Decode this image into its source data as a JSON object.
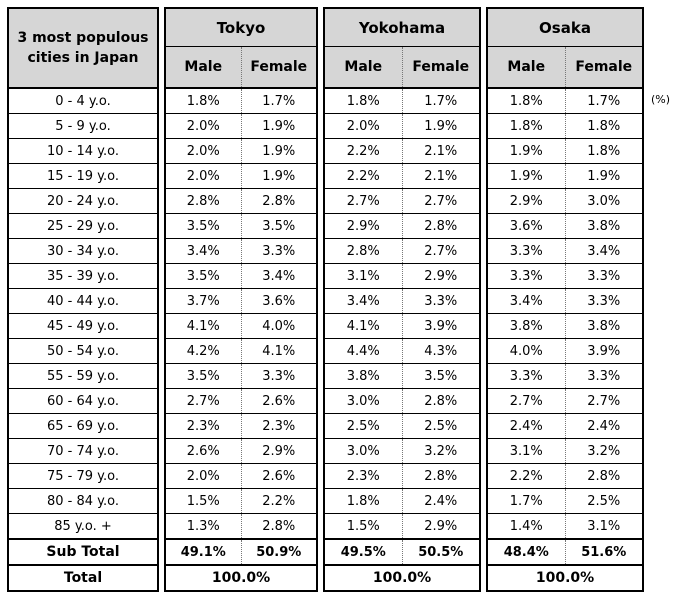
{
  "table": {
    "corner_title_line1": "3 most populous",
    "corner_title_line2": "cities in Japan",
    "unit_note": "(%)",
    "cities": [
      "Tokyo",
      "Yokohama",
      "Osaka"
    ],
    "sex_headers": [
      "Male",
      "Female"
    ],
    "sub_total_label": "Sub Total",
    "total_label": "Total",
    "rows": [
      {
        "label": "0 - 4 y.o.",
        "tokyo": [
          "1.8%",
          "1.7%"
        ],
        "yokohama": [
          "1.8%",
          "1.7%"
        ],
        "osaka": [
          "1.8%",
          "1.7%"
        ]
      },
      {
        "label": "5 - 9 y.o.",
        "tokyo": [
          "2.0%",
          "1.9%"
        ],
        "yokohama": [
          "2.0%",
          "1.9%"
        ],
        "osaka": [
          "1.8%",
          "1.8%"
        ]
      },
      {
        "label": "10 - 14 y.o.",
        "tokyo": [
          "2.0%",
          "1.9%"
        ],
        "yokohama": [
          "2.2%",
          "2.1%"
        ],
        "osaka": [
          "1.9%",
          "1.8%"
        ]
      },
      {
        "label": "15 - 19 y.o.",
        "tokyo": [
          "2.0%",
          "1.9%"
        ],
        "yokohama": [
          "2.2%",
          "2.1%"
        ],
        "osaka": [
          "1.9%",
          "1.9%"
        ]
      },
      {
        "label": "20 - 24 y.o.",
        "tokyo": [
          "2.8%",
          "2.8%"
        ],
        "yokohama": [
          "2.7%",
          "2.7%"
        ],
        "osaka": [
          "2.9%",
          "3.0%"
        ]
      },
      {
        "label": "25 - 29 y.o.",
        "tokyo": [
          "3.5%",
          "3.5%"
        ],
        "yokohama": [
          "2.9%",
          "2.8%"
        ],
        "osaka": [
          "3.6%",
          "3.8%"
        ]
      },
      {
        "label": "30 - 34 y.o.",
        "tokyo": [
          "3.4%",
          "3.3%"
        ],
        "yokohama": [
          "2.8%",
          "2.7%"
        ],
        "osaka": [
          "3.3%",
          "3.4%"
        ]
      },
      {
        "label": "35 - 39 y.o.",
        "tokyo": [
          "3.5%",
          "3.4%"
        ],
        "yokohama": [
          "3.1%",
          "2.9%"
        ],
        "osaka": [
          "3.3%",
          "3.3%"
        ]
      },
      {
        "label": "40 - 44 y.o.",
        "tokyo": [
          "3.7%",
          "3.6%"
        ],
        "yokohama": [
          "3.4%",
          "3.3%"
        ],
        "osaka": [
          "3.4%",
          "3.3%"
        ]
      },
      {
        "label": "45 - 49 y.o.",
        "tokyo": [
          "4.1%",
          "4.0%"
        ],
        "yokohama": [
          "4.1%",
          "3.9%"
        ],
        "osaka": [
          "3.8%",
          "3.8%"
        ]
      },
      {
        "label": "50 - 54 y.o.",
        "tokyo": [
          "4.2%",
          "4.1%"
        ],
        "yokohama": [
          "4.4%",
          "4.3%"
        ],
        "osaka": [
          "4.0%",
          "3.9%"
        ]
      },
      {
        "label": "55 - 59 y.o.",
        "tokyo": [
          "3.5%",
          "3.3%"
        ],
        "yokohama": [
          "3.8%",
          "3.5%"
        ],
        "osaka": [
          "3.3%",
          "3.3%"
        ]
      },
      {
        "label": "60 - 64 y.o.",
        "tokyo": [
          "2.7%",
          "2.6%"
        ],
        "yokohama": [
          "3.0%",
          "2.8%"
        ],
        "osaka": [
          "2.7%",
          "2.7%"
        ]
      },
      {
        "label": "65 - 69 y.o.",
        "tokyo": [
          "2.3%",
          "2.3%"
        ],
        "yokohama": [
          "2.5%",
          "2.5%"
        ],
        "osaka": [
          "2.4%",
          "2.4%"
        ]
      },
      {
        "label": "70 - 74 y.o.",
        "tokyo": [
          "2.6%",
          "2.9%"
        ],
        "yokohama": [
          "3.0%",
          "3.2%"
        ],
        "osaka": [
          "3.1%",
          "3.2%"
        ]
      },
      {
        "label": "75 - 79 y.o.",
        "tokyo": [
          "2.0%",
          "2.6%"
        ],
        "yokohama": [
          "2.3%",
          "2.8%"
        ],
        "osaka": [
          "2.2%",
          "2.8%"
        ]
      },
      {
        "label": "80 - 84 y.o.",
        "tokyo": [
          "1.5%",
          "2.2%"
        ],
        "yokohama": [
          "1.8%",
          "2.4%"
        ],
        "osaka": [
          "1.7%",
          "2.5%"
        ]
      },
      {
        "label": "85 y.o. +",
        "tokyo": [
          "1.3%",
          "2.8%"
        ],
        "yokohama": [
          "1.5%",
          "2.9%"
        ],
        "osaka": [
          "1.4%",
          "3.1%"
        ]
      }
    ],
    "sub_total": {
      "tokyo": [
        "49.1%",
        "50.9%"
      ],
      "yokohama": [
        "49.5%",
        "50.5%"
      ],
      "osaka": [
        "48.4%",
        "51.6%"
      ]
    },
    "total_values": [
      "100.0%",
      "100.0%",
      "100.0%"
    ]
  },
  "colors": {
    "header_bg": "#d6d6d6",
    "border": "#000000",
    "text": "#000000"
  },
  "chart_data": {
    "type": "table",
    "title": "3 most populous cities in Japan",
    "unit": "%",
    "age_groups": [
      "0 - 4 y.o.",
      "5 - 9 y.o.",
      "10 - 14 y.o.",
      "15 - 19 y.o.",
      "20 - 24 y.o.",
      "25 - 29 y.o.",
      "30 - 34 y.o.",
      "35 - 39 y.o.",
      "40 - 44 y.o.",
      "45 - 49 y.o.",
      "50 - 54 y.o.",
      "55 - 59 y.o.",
      "60 - 64 y.o.",
      "65 - 69 y.o.",
      "70 - 74 y.o.",
      "75 - 79 y.o.",
      "80 - 84 y.o.",
      "85 y.o. +"
    ],
    "series": [
      {
        "city": "Tokyo",
        "sex": "Male",
        "values": [
          1.8,
          2.0,
          2.0,
          2.0,
          2.8,
          3.5,
          3.4,
          3.5,
          3.7,
          4.1,
          4.2,
          3.5,
          2.7,
          2.3,
          2.6,
          2.0,
          1.5,
          1.3
        ],
        "sub_total": 49.1
      },
      {
        "city": "Tokyo",
        "sex": "Female",
        "values": [
          1.7,
          1.9,
          1.9,
          1.9,
          2.8,
          3.5,
          3.3,
          3.4,
          3.6,
          4.0,
          4.1,
          3.3,
          2.6,
          2.3,
          2.9,
          2.6,
          2.2,
          2.8
        ],
        "sub_total": 50.9
      },
      {
        "city": "Yokohama",
        "sex": "Male",
        "values": [
          1.8,
          2.0,
          2.2,
          2.2,
          2.7,
          2.9,
          2.8,
          3.1,
          3.4,
          4.1,
          4.4,
          3.8,
          3.0,
          2.5,
          3.0,
          2.3,
          1.8,
          1.5
        ],
        "sub_total": 49.5
      },
      {
        "city": "Yokohama",
        "sex": "Female",
        "values": [
          1.7,
          1.9,
          2.1,
          2.1,
          2.7,
          2.8,
          2.7,
          2.9,
          3.3,
          3.9,
          4.3,
          3.5,
          2.8,
          2.5,
          3.2,
          2.8,
          2.4,
          2.9
        ],
        "sub_total": 50.5
      },
      {
        "city": "Osaka",
        "sex": "Male",
        "values": [
          1.8,
          1.8,
          1.9,
          1.9,
          2.9,
          3.6,
          3.3,
          3.3,
          3.4,
          3.8,
          4.0,
          3.3,
          2.7,
          2.4,
          3.1,
          2.2,
          1.7,
          1.4
        ],
        "sub_total": 48.4
      },
      {
        "city": "Osaka",
        "sex": "Female",
        "values": [
          1.7,
          1.8,
          1.8,
          1.9,
          3.0,
          3.8,
          3.4,
          3.3,
          3.3,
          3.8,
          3.9,
          3.3,
          2.7,
          2.4,
          3.2,
          2.8,
          2.5,
          3.1
        ],
        "sub_total": 51.6
      }
    ],
    "totals": {
      "Tokyo": 100.0,
      "Yokohama": 100.0,
      "Osaka": 100.0
    }
  }
}
